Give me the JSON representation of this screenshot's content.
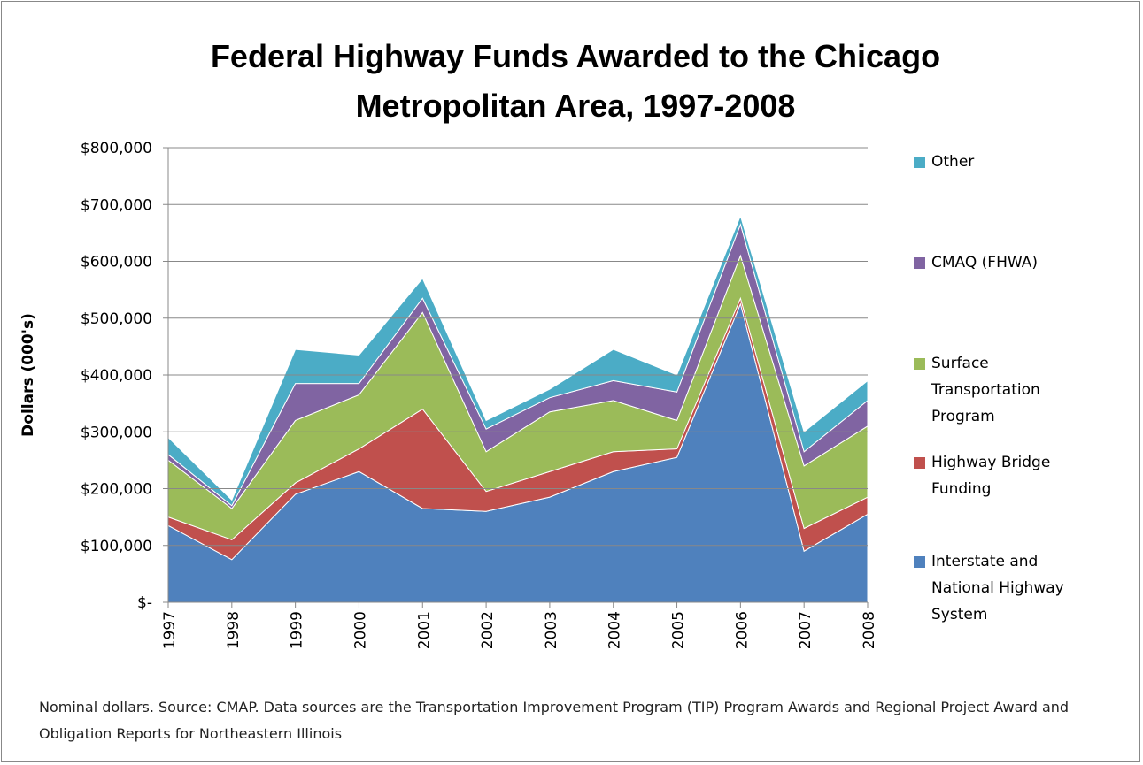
{
  "chart_data": {
    "type": "stacked_area",
    "title": "Federal Highway Funds Awarded to the Chicago Metropolitan Area, 1997-2008",
    "ylabel": "Dollars  (000's)",
    "note": "Nominal dollars.  Source:  CMAP.  Data sources are the Transportation Improvement Program (TIP) Program Awards and Regional Project Award and Obligation Reports for Northeastern Illinois",
    "categories": [
      "1997",
      "1998",
      "1999",
      "2000",
      "2001",
      "2002",
      "2003",
      "2004",
      "2005",
      "2006",
      "2007",
      "2008"
    ],
    "series": [
      {
        "name": "Interstate and National Highway System",
        "color": "#4f81bd",
        "values": [
          135000,
          75000,
          190000,
          230000,
          165000,
          160000,
          185000,
          230000,
          255000,
          525000,
          90000,
          155000
        ]
      },
      {
        "name": "Highway Bridge Funding",
        "color": "#c0504d",
        "values": [
          15000,
          35000,
          20000,
          40000,
          175000,
          35000,
          45000,
          35000,
          15000,
          10000,
          40000,
          30000
        ]
      },
      {
        "name": "Surface Transportation Program",
        "color": "#9bbb59",
        "values": [
          100000,
          55000,
          110000,
          95000,
          170000,
          70000,
          105000,
          90000,
          50000,
          75000,
          110000,
          125000
        ]
      },
      {
        "name": "CMAQ (FHWA)",
        "color": "#8064a2",
        "values": [
          10000,
          5000,
          65000,
          20000,
          25000,
          40000,
          25000,
          35000,
          50000,
          55000,
          25000,
          45000
        ]
      },
      {
        "name": "Other",
        "color": "#4bacc6",
        "values": [
          30000,
          10000,
          60000,
          50000,
          35000,
          15000,
          15000,
          55000,
          30000,
          15000,
          35000,
          35000
        ]
      }
    ],
    "ylim": [
      0,
      800000
    ],
    "yticks": [
      {
        "value": 0,
        "label": "$-"
      },
      {
        "value": 100000,
        "label": "$100,000"
      },
      {
        "value": 200000,
        "label": "$200,000"
      },
      {
        "value": 300000,
        "label": "$300,000"
      },
      {
        "value": 400000,
        "label": "$400,000"
      },
      {
        "value": 500000,
        "label": "$500,000"
      },
      {
        "value": 600000,
        "label": "$600,000"
      },
      {
        "value": 700000,
        "label": "$700,000"
      },
      {
        "value": 800000,
        "label": "$800,000"
      }
    ],
    "grid": true,
    "legend": "right"
  }
}
